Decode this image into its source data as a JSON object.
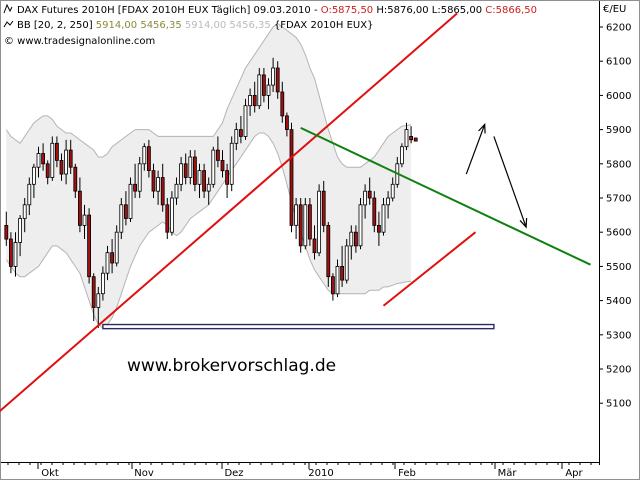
{
  "header": {
    "line1": {
      "title": "DAX Futures 2010H [FDAX 2010H EUX  Täglich] 09.03.2010 - ",
      "open": "O:5875,50",
      "rest": " H:5876,00 L:5865,00 ",
      "close": "C:5866,50"
    },
    "line2": {
      "prefix": "BB [20, 2, 250] ",
      "upper": "5914,00",
      "lower": "5456,35",
      "faded": "5914,00 5456,35",
      "suffix": " {FDAX 2010H EUX}"
    },
    "line3": "© www.tradesignalonline.com"
  },
  "watermark": "www.brokervorschlag.de",
  "colors": {
    "bull": "#ffffff",
    "bear": "#a01010",
    "band": "#b4b4b4",
    "band_fill": "#eeeeee",
    "red_line": "#e01010",
    "green_line": "#108010",
    "open_text": "#cc2020",
    "upper_text": "#8a8a3c",
    "lower_text": "#bbbbbb",
    "support": "#2a2a60"
  },
  "chart_data": {
    "type": "candlestick",
    "unit": "€/EU",
    "y_axis_label": "€/EU",
    "y_ticks": [
      6200,
      6100,
      6000,
      5900,
      5800,
      5700,
      5600,
      5500,
      5400,
      5300,
      5200,
      5100
    ],
    "ylim": [
      5050,
      6240
    ],
    "x_ticks": [
      "Okt",
      "Nov",
      "Dez",
      "2010",
      "Feb",
      "Mär",
      "Apr"
    ],
    "indicator": {
      "name": "BB",
      "params": [
        20,
        2,
        250
      ],
      "upper": 5914.0,
      "lower": 5456.35
    },
    "last_bar": {
      "date": "09.03.2010",
      "open": 5875.5,
      "high": 5876.0,
      "low": 5865.0,
      "close": 5866.5
    },
    "candles_ohlc": [
      [
        5620,
        5660,
        5560,
        5580
      ],
      [
        5580,
        5600,
        5480,
        5500
      ],
      [
        5500,
        5600,
        5470,
        5570
      ],
      [
        5570,
        5650,
        5530,
        5640
      ],
      [
        5640,
        5700,
        5600,
        5680
      ],
      [
        5680,
        5760,
        5650,
        5740
      ],
      [
        5740,
        5800,
        5700,
        5790
      ],
      [
        5790,
        5850,
        5760,
        5830
      ],
      [
        5830,
        5860,
        5780,
        5800
      ],
      [
        5800,
        5810,
        5740,
        5760
      ],
      [
        5760,
        5880,
        5750,
        5860
      ],
      [
        5860,
        5880,
        5790,
        5810
      ],
      [
        5810,
        5830,
        5750,
        5770
      ],
      [
        5770,
        5870,
        5740,
        5840
      ],
      [
        5840,
        5870,
        5770,
        5790
      ],
      [
        5790,
        5800,
        5700,
        5720
      ],
      [
        5720,
        5760,
        5600,
        5620
      ],
      [
        5620,
        5680,
        5580,
        5650
      ],
      [
        5650,
        5670,
        5450,
        5470
      ],
      [
        5470,
        5480,
        5340,
        5380
      ],
      [
        5380,
        5440,
        5320,
        5420
      ],
      [
        5420,
        5500,
        5400,
        5480
      ],
      [
        5480,
        5560,
        5460,
        5540
      ],
      [
        5540,
        5580,
        5480,
        5510
      ],
      [
        5510,
        5620,
        5500,
        5600
      ],
      [
        5600,
        5700,
        5580,
        5680
      ],
      [
        5680,
        5720,
        5620,
        5640
      ],
      [
        5640,
        5760,
        5630,
        5740
      ],
      [
        5740,
        5800,
        5700,
        5720
      ],
      [
        5720,
        5820,
        5700,
        5800
      ],
      [
        5800,
        5860,
        5780,
        5850
      ],
      [
        5850,
        5870,
        5760,
        5780
      ],
      [
        5780,
        5800,
        5700,
        5720
      ],
      [
        5720,
        5780,
        5680,
        5760
      ],
      [
        5760,
        5800,
        5660,
        5680
      ],
      [
        5680,
        5700,
        5580,
        5600
      ],
      [
        5600,
        5720,
        5590,
        5700
      ],
      [
        5700,
        5760,
        5680,
        5740
      ],
      [
        5740,
        5820,
        5720,
        5800
      ],
      [
        5800,
        5830,
        5740,
        5760
      ],
      [
        5760,
        5840,
        5740,
        5820
      ],
      [
        5820,
        5840,
        5720,
        5740
      ],
      [
        5740,
        5800,
        5700,
        5780
      ],
      [
        5780,
        5800,
        5700,
        5720
      ],
      [
        5720,
        5760,
        5680,
        5740
      ],
      [
        5740,
        5850,
        5730,
        5840
      ],
      [
        5840,
        5880,
        5790,
        5810
      ],
      [
        5810,
        5840,
        5760,
        5780
      ],
      [
        5780,
        5800,
        5700,
        5740
      ],
      [
        5740,
        5880,
        5720,
        5860
      ],
      [
        5860,
        5920,
        5840,
        5900
      ],
      [
        5900,
        5940,
        5860,
        5880
      ],
      [
        5880,
        5990,
        5870,
        5970
      ],
      [
        5970,
        6020,
        5940,
        6000
      ],
      [
        6000,
        6040,
        5950,
        5970
      ],
      [
        5970,
        6080,
        5960,
        6060
      ],
      [
        6060,
        6080,
        5980,
        6000
      ],
      [
        6000,
        6050,
        5960,
        6030
      ],
      [
        6030,
        6110,
        6010,
        6080
      ],
      [
        6080,
        6100,
        5990,
        6010
      ],
      [
        6010,
        6040,
        5920,
        5940
      ],
      [
        5940,
        5950,
        5880,
        5900
      ],
      [
        5900,
        5920,
        5600,
        5620
      ],
      [
        5620,
        5700,
        5580,
        5680
      ],
      [
        5680,
        5700,
        5540,
        5560
      ],
      [
        5560,
        5700,
        5550,
        5680
      ],
      [
        5680,
        5700,
        5560,
        5580
      ],
      [
        5580,
        5620,
        5520,
        5540
      ],
      [
        5540,
        5740,
        5530,
        5720
      ],
      [
        5720,
        5750,
        5600,
        5620
      ],
      [
        5620,
        5630,
        5440,
        5470
      ],
      [
        5470,
        5480,
        5400,
        5420
      ],
      [
        5420,
        5520,
        5410,
        5500
      ],
      [
        5500,
        5560,
        5440,
        5460
      ],
      [
        5460,
        5580,
        5450,
        5560
      ],
      [
        5560,
        5620,
        5520,
        5600
      ],
      [
        5600,
        5620,
        5540,
        5560
      ],
      [
        5560,
        5700,
        5550,
        5680
      ],
      [
        5680,
        5740,
        5640,
        5720
      ],
      [
        5720,
        5760,
        5680,
        5700
      ],
      [
        5700,
        5720,
        5600,
        5620
      ],
      [
        5620,
        5660,
        5560,
        5600
      ],
      [
        5600,
        5700,
        5590,
        5680
      ],
      [
        5680,
        5720,
        5640,
        5700
      ],
      [
        5700,
        5760,
        5690,
        5740
      ],
      [
        5740,
        5820,
        5730,
        5800
      ],
      [
        5800,
        5860,
        5790,
        5850
      ],
      [
        5850,
        5920,
        5840,
        5900
      ],
      [
        5880,
        5910,
        5860,
        5870
      ],
      [
        5875.5,
        5876,
        5865,
        5866.5
      ]
    ],
    "bollinger": {
      "upper": [
        5900,
        5880,
        5870,
        5860,
        5880,
        5900,
        5920,
        5930,
        5940,
        5940,
        5930,
        5910,
        5900,
        5890,
        5890,
        5880,
        5870,
        5860,
        5850,
        5840,
        5820,
        5820,
        5830,
        5850,
        5860,
        5870,
        5880,
        5890,
        5900,
        5900,
        5900,
        5900,
        5890,
        5880,
        5880,
        5880,
        5880,
        5880,
        5880,
        5880,
        5880,
        5880,
        5880,
        5880,
        5880,
        5880,
        5900,
        5920,
        5960,
        5990,
        6020,
        6050,
        6080,
        6100,
        6120,
        6140,
        6160,
        6180,
        6200,
        6210,
        6200,
        6190,
        6180,
        6170,
        6150,
        6120,
        6080,
        6050,
        6000,
        5950,
        5900,
        5860,
        5820,
        5800,
        5790,
        5790,
        5790,
        5790,
        5800,
        5810,
        5820,
        5840,
        5860,
        5880,
        5890,
        5900,
        5910,
        5912,
        5914
      ],
      "lower": [
        5520,
        5500,
        5480,
        5470,
        5470,
        5480,
        5490,
        5500,
        5520,
        5540,
        5560,
        5560,
        5550,
        5540,
        5520,
        5500,
        5480,
        5440,
        5400,
        5360,
        5330,
        5320,
        5330,
        5350,
        5380,
        5420,
        5460,
        5500,
        5530,
        5560,
        5580,
        5600,
        5610,
        5620,
        5630,
        5620,
        5600,
        5590,
        5600,
        5620,
        5640,
        5650,
        5660,
        5670,
        5680,
        5700,
        5720,
        5740,
        5760,
        5780,
        5800,
        5820,
        5840,
        5860,
        5880,
        5890,
        5890,
        5880,
        5860,
        5830,
        5790,
        5740,
        5690,
        5640,
        5600,
        5560,
        5520,
        5490,
        5470,
        5450,
        5430,
        5420,
        5420,
        5420,
        5420,
        5420,
        5420,
        5420,
        5420,
        5430,
        5430,
        5430,
        5440,
        5440,
        5445,
        5450,
        5452,
        5455,
        5456.35
      ]
    },
    "trendlines": [
      {
        "color": "red",
        "from": {
          "bar": -2,
          "price": 5070
        },
        "to": {
          "bar": 98,
          "price": 6240
        }
      },
      {
        "color": "green",
        "from": {
          "bar": 64,
          "price": 5905
        },
        "to": {
          "bar": 127,
          "price": 5505
        }
      },
      {
        "color": "red",
        "from": {
          "bar": 82,
          "price": 5385
        },
        "to": {
          "bar": 102,
          "price": 5600
        }
      }
    ],
    "support_zone": {
      "price_top": 5330,
      "price_bottom": 5318,
      "bar_from": 21,
      "bar_to": 106
    },
    "arrows": [
      {
        "from": {
          "bar": 100,
          "price": 5770
        },
        "to": {
          "bar": 104,
          "price": 5915
        }
      },
      {
        "from": {
          "bar": 106,
          "price": 5880
        },
        "to": {
          "bar": 113,
          "price": 5615
        }
      }
    ]
  }
}
